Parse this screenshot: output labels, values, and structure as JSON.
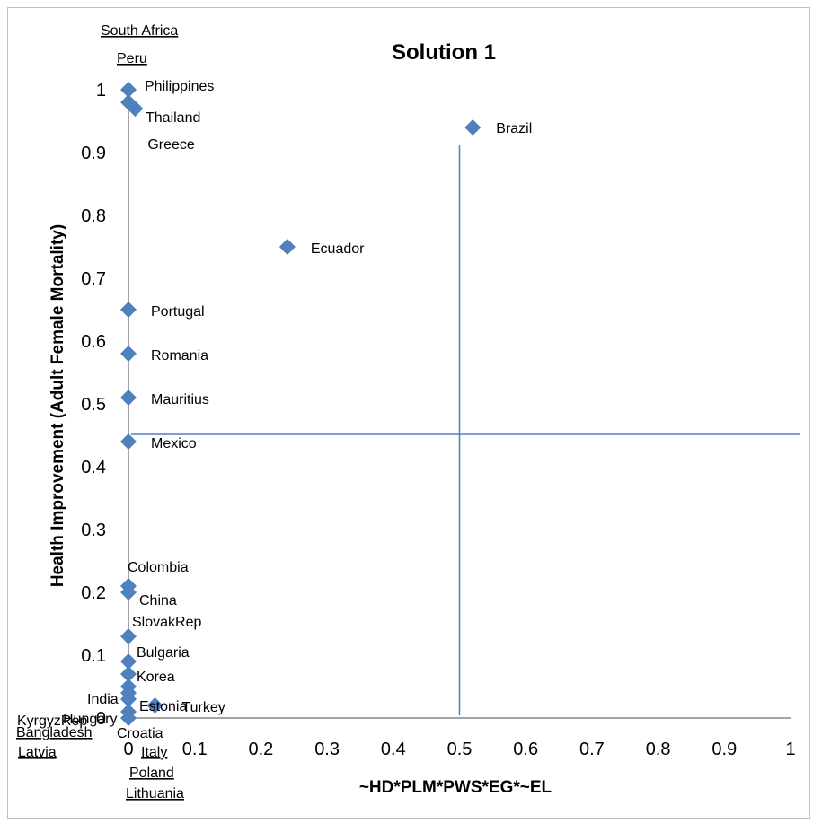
{
  "chart_data": {
    "type": "scatter",
    "title": "Solution 1",
    "xlabel": "~HD*PLM*PWS*EG*~EL",
    "ylabel": "Health Improvement (Adult Female Mortality)",
    "xlim": [
      0,
      1
    ],
    "ylim": [
      0,
      1
    ],
    "x_ticks": [
      "0",
      "0.1",
      "0.2",
      "0.3",
      "0.4",
      "0.5",
      "0.6",
      "0.7",
      "0.8",
      "0.9",
      "1"
    ],
    "y_ticks": [
      "0",
      "0.1",
      "0.2",
      "0.3",
      "0.4",
      "0.5",
      "0.6",
      "0.7",
      "0.8",
      "0.9",
      "1"
    ],
    "grid": false,
    "marker_color": "#4f81bd",
    "reference_line_color": "#4f81bd",
    "reference_lines": {
      "x": 0.5,
      "y": 0.45
    },
    "points": [
      {
        "label": "Philippines",
        "x": 0,
        "y": 1.0
      },
      {
        "label": "Thailand",
        "x": 0,
        "y": 0.98
      },
      {
        "label": "Greece",
        "x": 0.01,
        "y": 0.97
      },
      {
        "label": "Brazil",
        "x": 0.52,
        "y": 0.94
      },
      {
        "label": "Ecuador",
        "x": 0.24,
        "y": 0.75
      },
      {
        "label": "Portugal",
        "x": 0,
        "y": 0.65
      },
      {
        "label": "Romania",
        "x": 0,
        "y": 0.58
      },
      {
        "label": "Mauritius",
        "x": 0,
        "y": 0.51
      },
      {
        "label": "Mexico",
        "x": 0,
        "y": 0.44
      },
      {
        "label": "Colombia",
        "x": 0,
        "y": 0.21
      },
      {
        "label": "China",
        "x": 0,
        "y": 0.2
      },
      {
        "label": "SlovakRep",
        "x": 0,
        "y": 0.13
      },
      {
        "label": "Bulgaria",
        "x": 0,
        "y": 0.09
      },
      {
        "label": "Korea",
        "x": 0,
        "y": 0.07
      },
      {
        "label": "India",
        "x": 0,
        "y": 0.05
      },
      {
        "label": "Estonia",
        "x": 0,
        "y": 0.04
      },
      {
        "label": "Hungary",
        "x": 0,
        "y": 0.03
      },
      {
        "label": "Turkey",
        "x": 0.04,
        "y": 0.02
      },
      {
        "label": "KyrgyzRep",
        "x": 0,
        "y": 0.01
      },
      {
        "label": "Croatia",
        "x": 0,
        "y": 0.0
      }
    ],
    "offscale_labels": [
      "South Africa",
      "Peru",
      "Bangladesh",
      "Latvia",
      "Italy",
      "Poland",
      "Lithuania"
    ]
  }
}
